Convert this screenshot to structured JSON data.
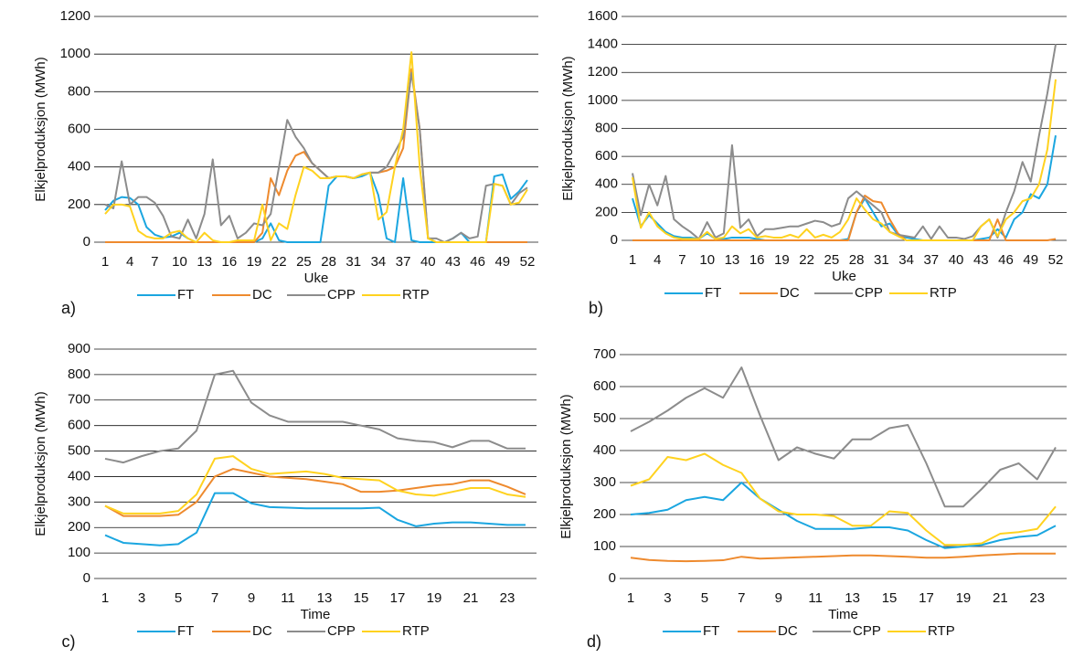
{
  "chart_data": [
    {
      "type": "line",
      "panel_label": "a)",
      "x_label": "Uke",
      "y_label": "Elkjelproduksjon (MWh)",
      "x": [
        1,
        2,
        3,
        4,
        5,
        6,
        7,
        8,
        9,
        10,
        11,
        12,
        13,
        14,
        15,
        16,
        17,
        18,
        19,
        20,
        21,
        22,
        23,
        24,
        25,
        26,
        27,
        28,
        29,
        30,
        31,
        32,
        33,
        34,
        35,
        36,
        37,
        38,
        39,
        40,
        41,
        42,
        43,
        44,
        45,
        46,
        47,
        48,
        49,
        50,
        51,
        52
      ],
      "xlim": [
        1,
        52
      ],
      "xticks": [
        1,
        4,
        7,
        10,
        13,
        16,
        19,
        22,
        25,
        28,
        31,
        34,
        37,
        40,
        43,
        46,
        49,
        52
      ],
      "ylim": [
        0,
        1200
      ],
      "yticks": [
        0,
        200,
        400,
        600,
        800,
        1000,
        1200
      ],
      "grid": true,
      "series": [
        {
          "name": "FT",
          "color": "#1ba6e0",
          "values": [
            170,
            220,
            240,
            235,
            200,
            80,
            40,
            25,
            30,
            50,
            20,
            0,
            0,
            0,
            0,
            0,
            0,
            0,
            0,
            20,
            100,
            10,
            0,
            0,
            0,
            0,
            0,
            300,
            350,
            350,
            340,
            350,
            370,
            250,
            20,
            0,
            340,
            10,
            0,
            0,
            0,
            0,
            20,
            50,
            0,
            0,
            0,
            350,
            360,
            230,
            270,
            330
          ]
        },
        {
          "name": "DC",
          "color": "#ee8a2e",
          "values": [
            0,
            0,
            0,
            0,
            0,
            0,
            0,
            0,
            0,
            0,
            0,
            0,
            0,
            0,
            0,
            0,
            0,
            0,
            0,
            50,
            340,
            250,
            380,
            460,
            480,
            420,
            380,
            340,
            350,
            350,
            340,
            360,
            370,
            370,
            380,
            400,
            500,
            920,
            600,
            20,
            0,
            0,
            0,
            0,
            0,
            0,
            0,
            0,
            0,
            0,
            0,
            0
          ]
        },
        {
          "name": "CPP",
          "color": "#8c8c8c",
          "values": [
            200,
            180,
            430,
            200,
            240,
            240,
            210,
            140,
            30,
            20,
            120,
            20,
            150,
            440,
            90,
            140,
            20,
            50,
            100,
            90,
            150,
            400,
            650,
            560,
            500,
            420,
            380,
            340,
            350,
            350,
            340,
            360,
            370,
            370,
            400,
            480,
            560,
            900,
            600,
            20,
            20,
            0,
            20,
            50,
            20,
            30,
            300,
            310,
            300,
            200,
            260,
            290
          ]
        },
        {
          "name": "RTP",
          "color": "#ffd21f",
          "values": [
            150,
            200,
            200,
            190,
            60,
            30,
            20,
            20,
            50,
            60,
            20,
            0,
            50,
            10,
            0,
            0,
            10,
            10,
            10,
            200,
            10,
            100,
            70,
            250,
            400,
            380,
            340,
            340,
            350,
            350,
            340,
            360,
            370,
            120,
            160,
            400,
            600,
            1010,
            400,
            20,
            0,
            0,
            0,
            0,
            0,
            0,
            0,
            310,
            300,
            200,
            210,
            280
          ]
        }
      ]
    },
    {
      "type": "line",
      "panel_label": "b)",
      "x_label": "Uke",
      "y_label": "Elkjelproduksjon (MWh)",
      "x": [
        1,
        2,
        3,
        4,
        5,
        6,
        7,
        8,
        9,
        10,
        11,
        12,
        13,
        14,
        15,
        16,
        17,
        18,
        19,
        20,
        21,
        22,
        23,
        24,
        25,
        26,
        27,
        28,
        29,
        30,
        31,
        32,
        33,
        34,
        35,
        36,
        37,
        38,
        39,
        40,
        41,
        42,
        43,
        44,
        45,
        46,
        47,
        48,
        49,
        50,
        51,
        52
      ],
      "xlim": [
        1,
        52
      ],
      "xticks": [
        1,
        4,
        7,
        10,
        13,
        16,
        19,
        22,
        25,
        28,
        31,
        34,
        37,
        40,
        43,
        46,
        49,
        52
      ],
      "ylim": [
        0,
        1600
      ],
      "yticks": [
        0,
        200,
        400,
        600,
        800,
        1000,
        1200,
        1400,
        1600
      ],
      "grid": true,
      "series": [
        {
          "name": "FT",
          "color": "#1ba6e0",
          "values": [
            300,
            100,
            180,
            120,
            60,
            30,
            20,
            20,
            10,
            50,
            10,
            10,
            20,
            20,
            20,
            10,
            0,
            0,
            0,
            0,
            0,
            0,
            0,
            0,
            0,
            0,
            10,
            200,
            300,
            200,
            100,
            120,
            40,
            20,
            10,
            0,
            0,
            0,
            0,
            0,
            0,
            0,
            10,
            20,
            80,
            20,
            150,
            200,
            330,
            300,
            400,
            750
          ]
        },
        {
          "name": "DC",
          "color": "#ee8a2e",
          "values": [
            0,
            0,
            0,
            0,
            0,
            0,
            0,
            0,
            0,
            0,
            0,
            0,
            0,
            0,
            0,
            0,
            0,
            0,
            0,
            0,
            0,
            0,
            0,
            0,
            0,
            0,
            0,
            200,
            320,
            280,
            270,
            150,
            50,
            0,
            0,
            0,
            0,
            0,
            0,
            0,
            0,
            0,
            0,
            0,
            150,
            0,
            0,
            0,
            0,
            0,
            0,
            10
          ]
        },
        {
          "name": "CPP",
          "color": "#8c8c8c",
          "values": [
            480,
            180,
            400,
            250,
            460,
            150,
            100,
            60,
            10,
            130,
            20,
            50,
            680,
            90,
            150,
            30,
            80,
            80,
            90,
            100,
            100,
            120,
            140,
            130,
            100,
            120,
            300,
            350,
            300,
            250,
            200,
            60,
            40,
            30,
            20,
            100,
            10,
            100,
            20,
            20,
            10,
            30,
            100,
            150,
            20,
            200,
            350,
            560,
            420,
            750,
            1050,
            1400
          ]
        },
        {
          "name": "RTP",
          "color": "#ffd21f",
          "values": [
            450,
            90,
            200,
            100,
            50,
            20,
            10,
            10,
            10,
            60,
            10,
            20,
            100,
            50,
            80,
            20,
            30,
            20,
            20,
            40,
            20,
            80,
            20,
            40,
            20,
            60,
            150,
            300,
            220,
            150,
            120,
            60,
            30,
            0,
            0,
            0,
            0,
            0,
            0,
            0,
            0,
            0,
            100,
            150,
            30,
            150,
            200,
            280,
            300,
            400,
            650,
            1150
          ]
        }
      ]
    },
    {
      "type": "line",
      "panel_label": "c)",
      "x_label": "Time",
      "y_label": "Elkjelproduksjon (MWh)",
      "x": [
        1,
        2,
        3,
        4,
        5,
        6,
        7,
        8,
        9,
        10,
        11,
        12,
        13,
        14,
        15,
        16,
        17,
        18,
        19,
        20,
        21,
        22,
        23,
        24
      ],
      "xlim": [
        1,
        24
      ],
      "xticks": [
        1,
        3,
        5,
        7,
        9,
        11,
        13,
        15,
        17,
        19,
        21,
        23
      ],
      "ylim": [
        0,
        900
      ],
      "yticks": [
        0,
        100,
        200,
        300,
        400,
        500,
        600,
        700,
        800,
        900
      ],
      "grid": true,
      "series": [
        {
          "name": "FT",
          "color": "#1ba6e0",
          "values": [
            170,
            140,
            135,
            130,
            135,
            180,
            335,
            335,
            295,
            280,
            278,
            275,
            275,
            275,
            275,
            278,
            230,
            205,
            215,
            220,
            220,
            215,
            210,
            210
          ]
        },
        {
          "name": "DC",
          "color": "#ee8a2e",
          "values": [
            285,
            245,
            245,
            245,
            250,
            300,
            400,
            430,
            415,
            400,
            395,
            390,
            380,
            370,
            340,
            340,
            345,
            355,
            365,
            370,
            385,
            385,
            360,
            330
          ]
        },
        {
          "name": "CPP",
          "color": "#8c8c8c",
          "values": [
            470,
            455,
            480,
            500,
            510,
            580,
            800,
            815,
            690,
            640,
            615,
            615,
            615,
            615,
            600,
            585,
            550,
            540,
            535,
            515,
            540,
            540,
            510,
            510
          ]
        },
        {
          "name": "RTP",
          "color": "#ffd21f",
          "values": [
            285,
            255,
            255,
            255,
            265,
            330,
            470,
            480,
            430,
            410,
            415,
            420,
            410,
            395,
            390,
            385,
            345,
            330,
            325,
            340,
            355,
            355,
            330,
            320
          ]
        }
      ]
    },
    {
      "type": "line",
      "panel_label": "d)",
      "x_label": "Time",
      "y_label": "Elkjelproduksjon (MWh)",
      "x": [
        1,
        2,
        3,
        4,
        5,
        6,
        7,
        8,
        9,
        10,
        11,
        12,
        13,
        14,
        15,
        16,
        17,
        18,
        19,
        20,
        21,
        22,
        23,
        24
      ],
      "xlim": [
        1,
        24
      ],
      "xticks": [
        1,
        3,
        5,
        7,
        9,
        11,
        13,
        15,
        17,
        19,
        21,
        23
      ],
      "ylim": [
        0,
        700
      ],
      "yticks": [
        0,
        100,
        200,
        300,
        400,
        500,
        600,
        700
      ],
      "grid": true,
      "series": [
        {
          "name": "FT",
          "color": "#1ba6e0",
          "values": [
            200,
            205,
            215,
            245,
            255,
            245,
            300,
            250,
            215,
            180,
            155,
            155,
            155,
            160,
            160,
            150,
            120,
            95,
            100,
            105,
            120,
            130,
            135,
            165
          ]
        },
        {
          "name": "DC",
          "color": "#ee8a2e",
          "values": [
            65,
            58,
            55,
            54,
            55,
            57,
            68,
            62,
            64,
            66,
            68,
            70,
            72,
            72,
            70,
            68,
            65,
            65,
            68,
            72,
            75,
            78,
            78,
            78
          ]
        },
        {
          "name": "CPP",
          "color": "#8c8c8c",
          "values": [
            460,
            490,
            525,
            565,
            595,
            565,
            660,
            510,
            370,
            410,
            390,
            375,
            435,
            435,
            470,
            480,
            360,
            225,
            225,
            280,
            340,
            360,
            310,
            410
          ]
        },
        {
          "name": "RTP",
          "color": "#ffd21f",
          "values": [
            290,
            310,
            380,
            370,
            390,
            355,
            330,
            250,
            210,
            200,
            200,
            195,
            165,
            165,
            210,
            205,
            150,
            105,
            105,
            110,
            140,
            145,
            155,
            225
          ]
        }
      ]
    }
  ]
}
